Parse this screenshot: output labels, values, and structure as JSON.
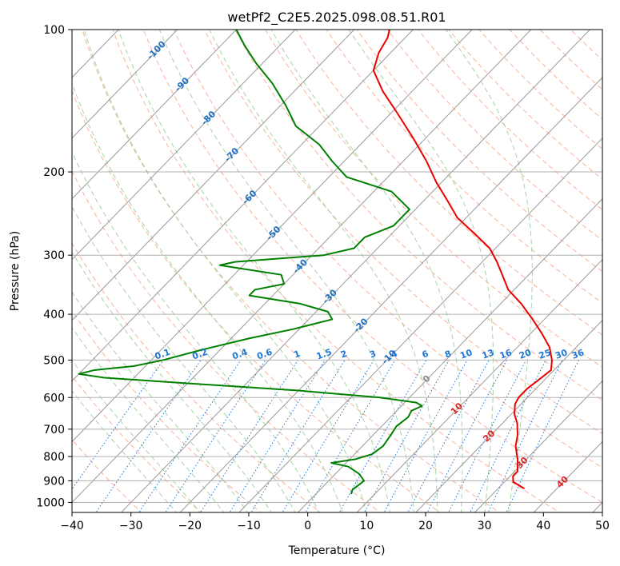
{
  "chart_data": {
    "type": "line",
    "subtype": "skew-t-log-p",
    "title": "wetPf2_C2E5.2025.098.08.51.R01",
    "xlabel": "Temperature (°C)",
    "ylabel": "Pressure (hPa)",
    "xlim": [
      -40,
      50
    ],
    "ylim": [
      1050,
      100
    ],
    "y_scale": "log",
    "grid": true,
    "x_ticks": [
      -40,
      -30,
      -20,
      -10,
      0,
      10,
      20,
      30,
      40,
      50
    ],
    "x_tick_labels": [
      "−40",
      "−30",
      "−20",
      "−10",
      "0",
      "10",
      "20",
      "30",
      "40",
      "50"
    ],
    "y_ticks": [
      100,
      200,
      300,
      400,
      500,
      600,
      700,
      800,
      900,
      1000
    ],
    "y_tick_labels": [
      "100",
      "200",
      "300",
      "400",
      "500",
      "600",
      "700",
      "800",
      "900",
      "1000"
    ],
    "colors": {
      "temperature": "#ee0000",
      "dewpoint": "#008000",
      "dry_adiabat": "#f4a688",
      "moist_adiabat": "#9bcf9b",
      "isotherm": "#999999",
      "mixing_ratio": "#1f77d4",
      "isotherm_label": "#1f6fbf",
      "saturated_label": "#d62728"
    },
    "series": [
      {
        "name": "temperature",
        "pressure": [
          935,
          905,
          880,
          860,
          835,
          810,
          790,
          760,
          720,
          680,
          650,
          620,
          600,
          575,
          550,
          525,
          500,
          470,
          440,
          410,
          380,
          355,
          330,
          310,
          290,
          270,
          250,
          230,
          210,
          190,
          170,
          150,
          135,
          122,
          112,
          104,
          100
        ],
        "temp": [
          34.5,
          31.5,
          30.5,
          30.5,
          29.5,
          28.5,
          27.5,
          26.0,
          24.5,
          22.5,
          20.5,
          19.0,
          18.5,
          18.5,
          19.0,
          19.5,
          18.0,
          15.5,
          12.0,
          8.0,
          3.5,
          -1.0,
          -4.5,
          -7.5,
          -11.0,
          -16.0,
          -21.5,
          -26.0,
          -31.0,
          -36.0,
          -42.0,
          -49.0,
          -55.0,
          -60.0,
          -62.0,
          -63.0,
          -64.0
        ]
      },
      {
        "name": "dewpoint",
        "pressure": [
          960,
          940,
          900,
          870,
          840,
          825,
          810,
          790,
          760,
          720,
          690,
          660,
          640,
          625,
          615,
          600,
          580,
          560,
          545,
          535,
          525,
          515,
          500,
          475,
          450,
          430,
          410,
          395,
          380,
          365,
          355,
          345,
          330,
          320,
          315,
          310,
          300,
          290,
          275,
          260,
          240,
          220,
          205,
          190,
          175,
          160,
          145,
          130,
          118,
          108,
          100
        ],
        "dewp": [
          6.0,
          5.5,
          6.0,
          4.0,
          1.0,
          -2.5,
          1.0,
          3.0,
          3.5,
          3.0,
          2.5,
          3.0,
          2.5,
          3.5,
          2.0,
          -5.0,
          -20.0,
          -40.0,
          -55.0,
          -60.0,
          -58.0,
          -52.0,
          -48.0,
          -43.0,
          -37.0,
          -31.0,
          -26.0,
          -28.0,
          -34.0,
          -44.0,
          -44.0,
          -40.0,
          -42.0,
          -50.0,
          -54.0,
          -52.0,
          -38.0,
          -34.0,
          -34.0,
          -31.0,
          -31.0,
          -37.0,
          -47.0,
          -52.0,
          -57.0,
          -64.0,
          -69.0,
          -75.0,
          -81.0,
          -86.0,
          -90.0
        ]
      }
    ],
    "isotherm_labels": [
      "-100",
      "-90",
      "-80",
      "-70",
      "-60",
      "-50",
      "-40",
      "-30",
      "-20",
      "-10",
      "0",
      "10",
      "20",
      "30",
      "40"
    ],
    "isotherm_label_values": [
      -100,
      -90,
      -80,
      -70,
      -60,
      -50,
      -40,
      -30,
      -20,
      -10,
      0,
      10,
      20,
      30,
      40
    ],
    "mixing_ratio_labels": [
      "0.1",
      "0.2",
      "0.4",
      "0.6",
      "1",
      "1.5",
      "2",
      "3",
      "4",
      "6",
      "8",
      "10",
      "13",
      "16",
      "20",
      "25",
      "30",
      "36"
    ],
    "mixing_ratio_values": [
      0.1,
      0.2,
      0.4,
      0.6,
      1,
      1.5,
      2,
      3,
      4,
      6,
      8,
      10,
      13,
      16,
      20,
      25,
      30,
      36
    ]
  }
}
